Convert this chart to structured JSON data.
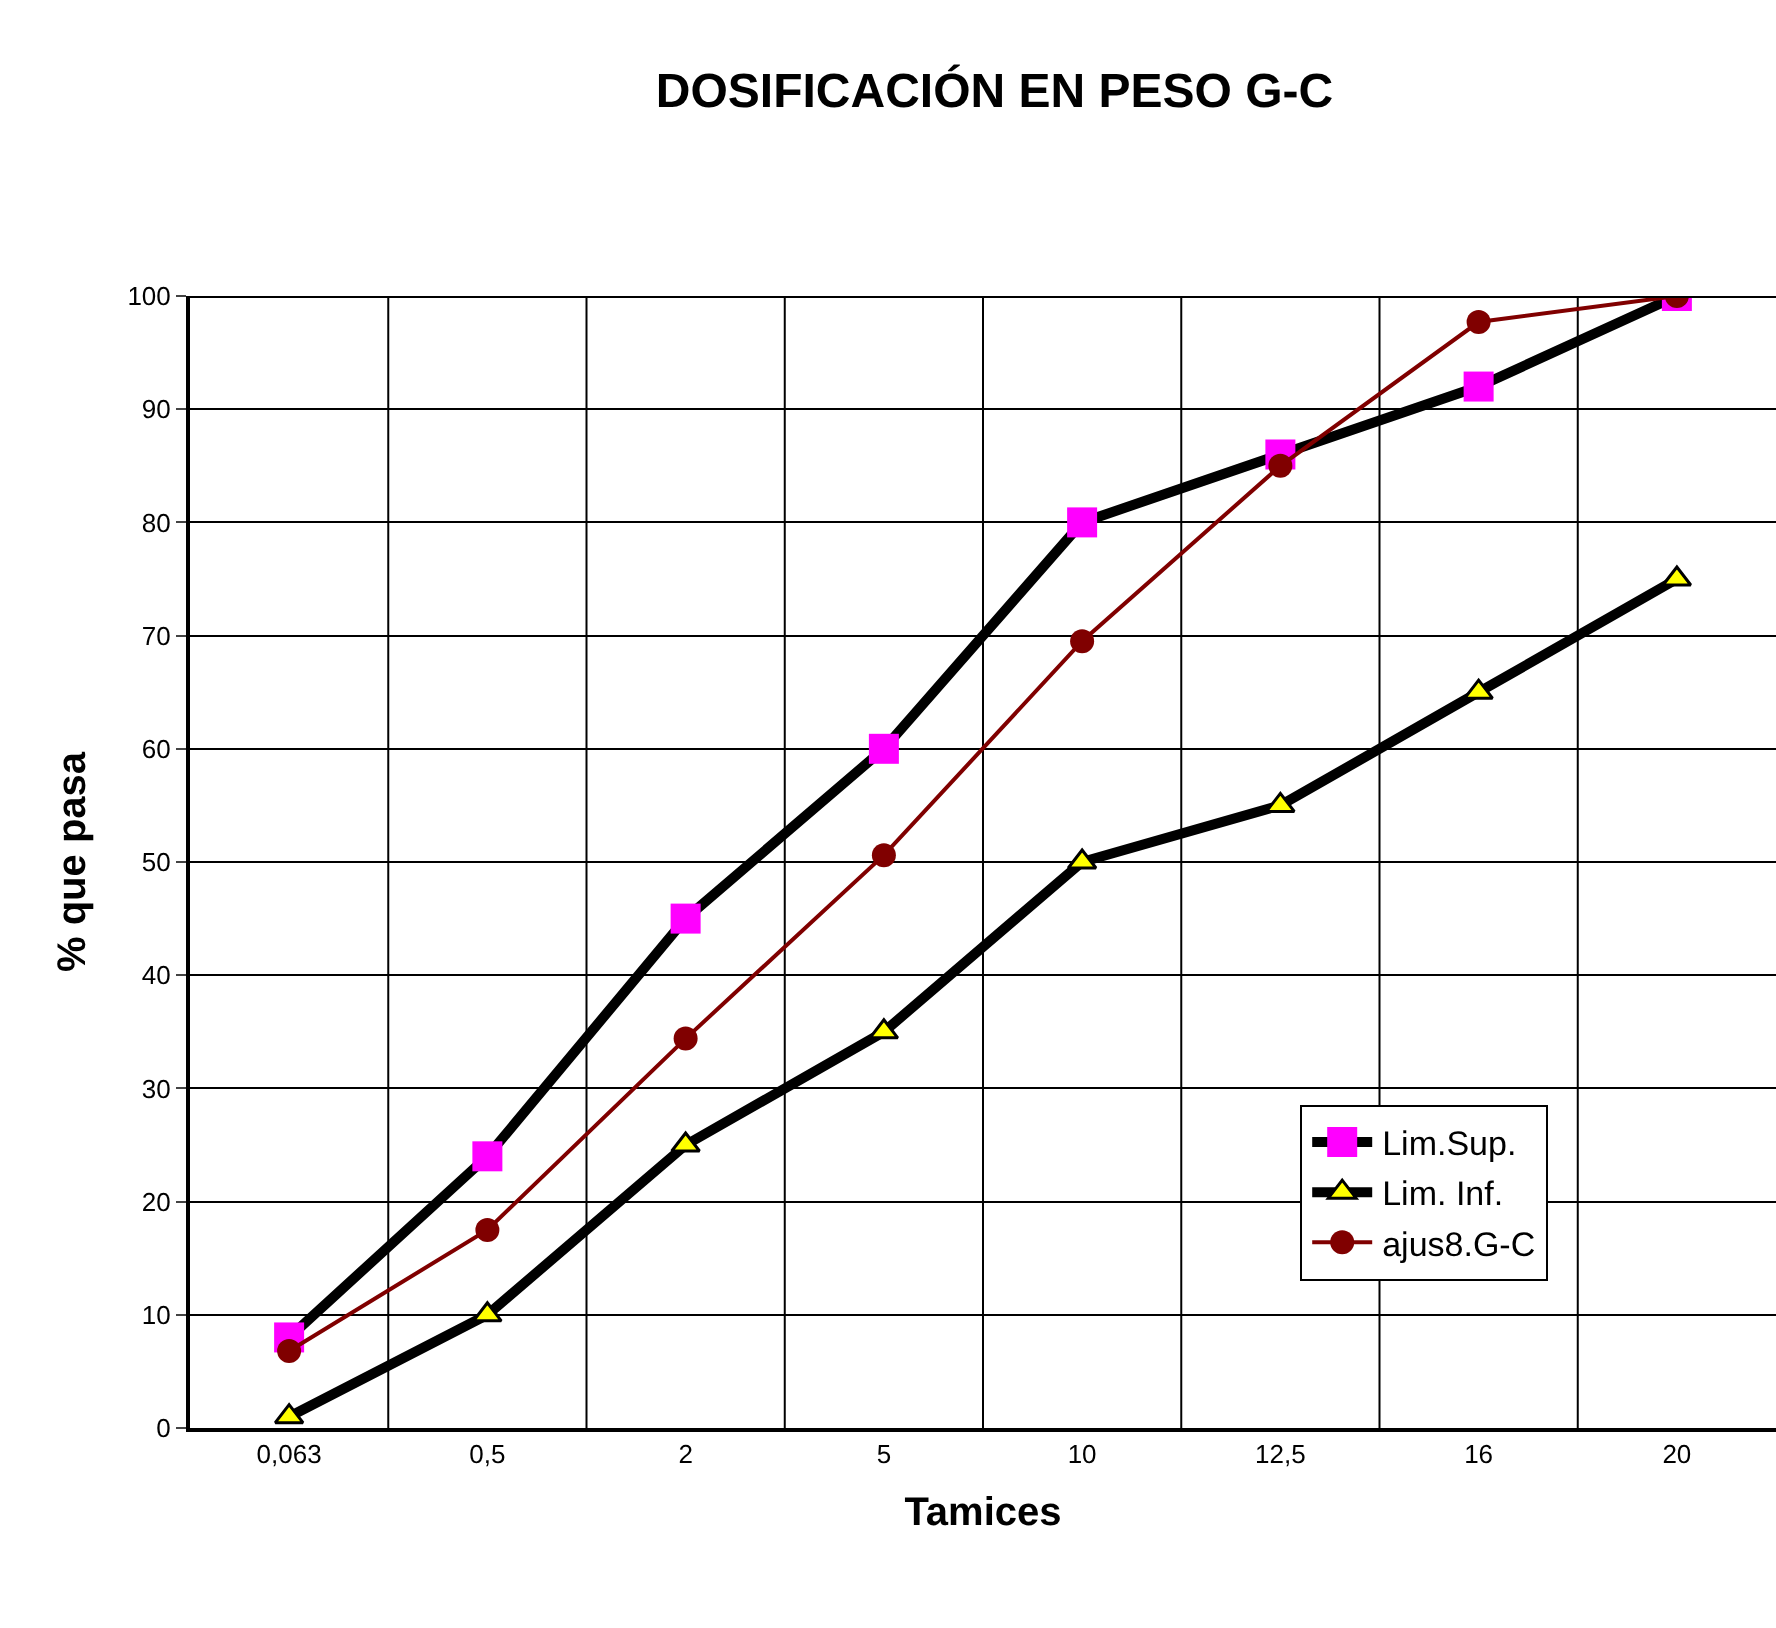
{
  "chart_data": {
    "type": "line",
    "title": "DOSIFICACIÓN EN PESO G-C",
    "xlabel": "Tamices",
    "ylabel": "% que pasa",
    "categories": [
      "0,063",
      "0,5",
      "2",
      "5",
      "10",
      "12,5",
      "16",
      "20"
    ],
    "series": [
      {
        "name": "Lim.Sup.",
        "color": "#ff00ff",
        "marker": "square",
        "values": [
          8,
          24,
          45,
          60,
          80,
          86,
          92,
          100
        ]
      },
      {
        "name": "Lim. Inf.",
        "color": "#ffff00",
        "marker": "triangle",
        "values": [
          1,
          10,
          25,
          35,
          50,
          55,
          65,
          75
        ]
      },
      {
        "name": "ajus8.G-C",
        "color": "#800000",
        "marker": "circle",
        "values": [
          6.8,
          17.5,
          34.4,
          50.6,
          69.5,
          85,
          97.7,
          100
        ]
      }
    ],
    "ylim": [
      0,
      100
    ],
    "yticks": [
      0,
      10,
      20,
      30,
      40,
      50,
      60,
      70,
      80,
      90,
      100
    ],
    "grid": true,
    "legend": "right",
    "line_style": "solid"
  }
}
